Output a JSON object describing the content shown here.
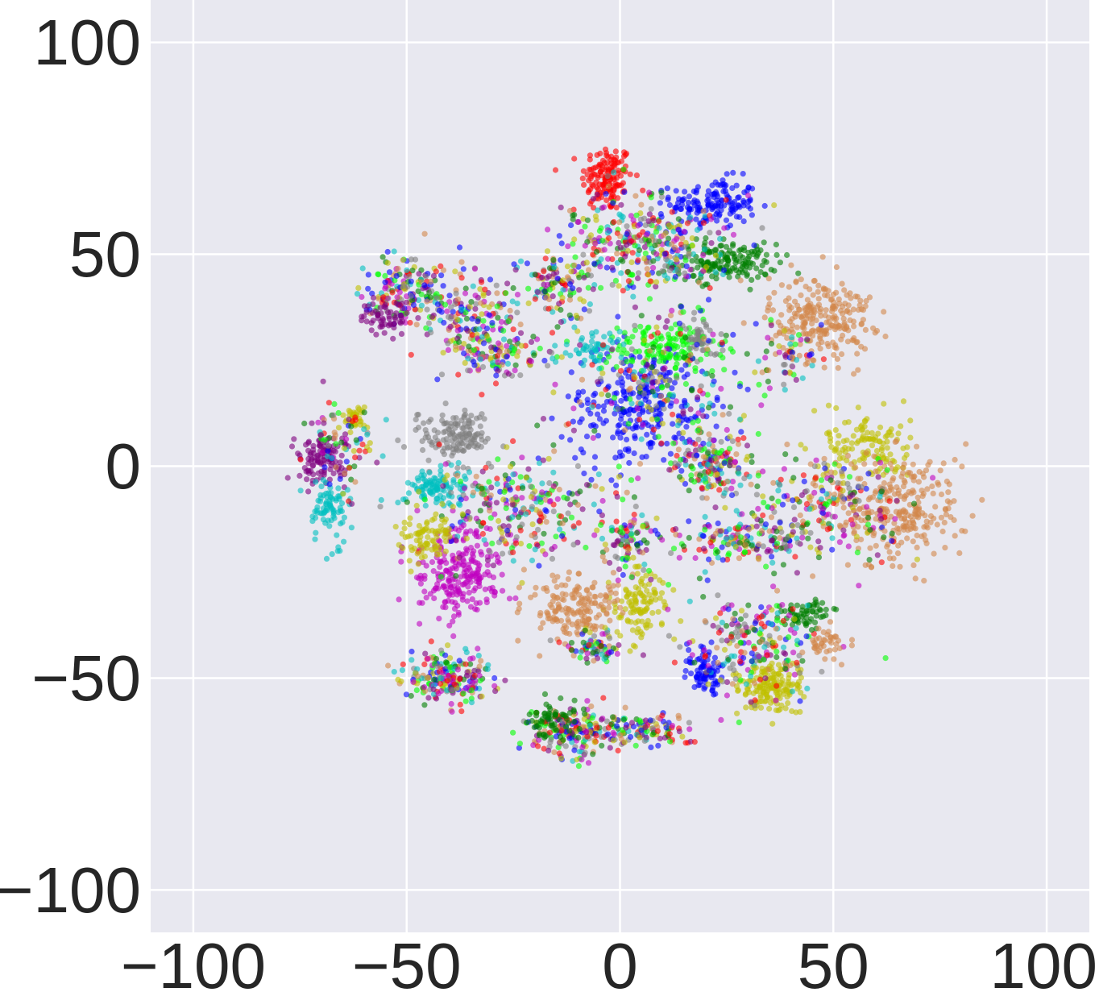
{
  "chart_data": {
    "type": "scatter",
    "title": "",
    "xlabel": "",
    "ylabel": "",
    "xlim": [
      -110,
      110
    ],
    "ylim": [
      -110,
      110
    ],
    "grid": true,
    "background": "#e8e8f0",
    "grid_color": "#ffffff",
    "legend": "none",
    "x_ticks": [
      -100,
      -50,
      0,
      50,
      100
    ],
    "y_ticks": [
      -100,
      -50,
      0,
      50,
      100
    ],
    "x_tick_labels": [
      "−100",
      "−50",
      "0",
      "50",
      "100"
    ],
    "y_tick_labels": [
      "−100",
      "−50",
      "0",
      "50",
      "100"
    ],
    "point_alpha": 0.6,
    "clusters": [
      {
        "blobs": [
          {
            "cx": -3,
            "cy": 68,
            "sx": 3,
            "sy": 4,
            "n": 140,
            "color": "#ff0000"
          },
          {
            "cx": 22,
            "cy": 62,
            "sx": 5,
            "sy": 3,
            "n": 150,
            "color": "#0000ff"
          },
          {
            "cx": 25,
            "cy": 48,
            "sx": 6,
            "sy": 2.2,
            "n": 150,
            "color": "#007f00"
          },
          {
            "cx": 5,
            "cy": 52,
            "sx": 10,
            "sy": 6,
            "n": 380,
            "color": "mix"
          },
          {
            "cx": -15,
            "cy": 42,
            "sx": 5,
            "sy": 4,
            "n": 110,
            "color": "mix"
          }
        ]
      },
      {
        "blobs": [
          {
            "cx": -50,
            "cy": 42,
            "sx": 5,
            "sy": 4,
            "n": 170,
            "color": "mix"
          },
          {
            "cx": -35,
            "cy": 35,
            "sx": 6,
            "sy": 5,
            "n": 170,
            "color": "mix"
          },
          {
            "cx": -28,
            "cy": 26,
            "sx": 5,
            "sy": 3,
            "n": 110,
            "color": "mix"
          },
          {
            "cx": -55,
            "cy": 35,
            "sx": 3,
            "sy": 2,
            "n": 60,
            "color": "#7f007f"
          }
        ]
      },
      {
        "blobs": [
          {
            "cx": 47,
            "cy": 35,
            "sx": 6,
            "sy": 5,
            "n": 240,
            "color": "#d2874b"
          },
          {
            "cx": 40,
            "cy": 25,
            "sx": 4,
            "sy": 3,
            "n": 60,
            "color": "mix"
          }
        ]
      },
      {
        "blobs": [
          {
            "cx": 5,
            "cy": 14,
            "sx": 9,
            "sy": 7,
            "n": 260,
            "color": "#0000ff"
          },
          {
            "cx": 10,
            "cy": 28,
            "sx": 7,
            "sy": 3,
            "n": 140,
            "color": "#00ff00"
          },
          {
            "cx": 19,
            "cy": 30,
            "sx": 2,
            "sy": 2,
            "n": 40,
            "color": "#808080"
          },
          {
            "cx": -6,
            "cy": 28,
            "sx": 3,
            "sy": 2,
            "n": 50,
            "color": "#00bfbf"
          },
          {
            "cx": 22,
            "cy": 0,
            "sx": 5,
            "sy": 4,
            "n": 170,
            "color": "mix"
          },
          {
            "cx": 10,
            "cy": 18,
            "sx": 9,
            "sy": 8,
            "n": 220,
            "color": "mix"
          }
        ]
      },
      {
        "blobs": [
          {
            "cx": -70,
            "cy": 2,
            "sx": 3,
            "sy": 3,
            "n": 110,
            "color": "#7f007f"
          },
          {
            "cx": -68,
            "cy": -10,
            "sx": 2,
            "sy": 4,
            "n": 80,
            "color": "#00bfbf"
          },
          {
            "cx": -62,
            "cy": 11,
            "sx": 1.5,
            "sy": 2,
            "n": 35,
            "color": "#bfbf00"
          },
          {
            "cx": -66,
            "cy": 5,
            "sx": 4,
            "sy": 5,
            "n": 80,
            "color": "mix"
          }
        ]
      },
      {
        "blobs": [
          {
            "cx": -38,
            "cy": 7,
            "sx": 4,
            "sy": 3,
            "n": 140,
            "color": "#808080"
          },
          {
            "cx": -43,
            "cy": -5,
            "sx": 4,
            "sy": 2,
            "n": 100,
            "color": "#00bfbf"
          },
          {
            "cx": -38,
            "cy": -25,
            "sx": 5,
            "sy": 5,
            "n": 230,
            "color": "#bf00bf"
          },
          {
            "cx": -25,
            "cy": -10,
            "sx": 10,
            "sy": 6,
            "n": 300,
            "color": "mix"
          },
          {
            "cx": -45,
            "cy": -17,
            "sx": 3,
            "sy": 3,
            "n": 80,
            "color": "#bfbf00"
          }
        ]
      },
      {
        "blobs": [
          {
            "cx": 5,
            "cy": -33,
            "sx": 3,
            "sy": 4,
            "n": 110,
            "color": "#bfbf00"
          },
          {
            "cx": -10,
            "cy": -33,
            "sx": 5,
            "sy": 4,
            "n": 170,
            "color": "#d2874b"
          },
          {
            "cx": 2,
            "cy": -18,
            "sx": 3,
            "sy": 5,
            "n": 100,
            "color": "mix"
          },
          {
            "cx": -6,
            "cy": -42,
            "sx": 4,
            "sy": 2,
            "n": 70,
            "color": "mix"
          }
        ]
      },
      {
        "blobs": [
          {
            "cx": 58,
            "cy": 5,
            "sx": 5,
            "sy": 4,
            "n": 120,
            "color": "#bfbf00"
          },
          {
            "cx": 65,
            "cy": -10,
            "sx": 8,
            "sy": 7,
            "n": 280,
            "color": "#d2874b"
          },
          {
            "cx": 48,
            "cy": -10,
            "sx": 9,
            "sy": 6,
            "n": 230,
            "color": "mix"
          },
          {
            "cx": 28,
            "cy": -18,
            "sx": 8,
            "sy": 2.5,
            "n": 160,
            "color": "mix"
          }
        ]
      },
      {
        "blobs": [
          {
            "cx": 20,
            "cy": -49,
            "sx": 2,
            "sy": 3,
            "n": 80,
            "color": "#0000ff"
          },
          {
            "cx": 35,
            "cy": -52,
            "sx": 4,
            "sy": 3,
            "n": 160,
            "color": "#bfbf00"
          },
          {
            "cx": 43,
            "cy": -35,
            "sx": 3,
            "sy": 1.5,
            "n": 60,
            "color": "#007f00"
          },
          {
            "cx": 32,
            "cy": -42,
            "sx": 8,
            "sy": 6,
            "n": 230,
            "color": "mix"
          },
          {
            "cx": 48,
            "cy": -42,
            "sx": 2,
            "sy": 2,
            "n": 40,
            "color": "#d2874b"
          }
        ]
      },
      {
        "blobs": [
          {
            "cx": -40,
            "cy": -50,
            "sx": 5,
            "sy": 3,
            "n": 210,
            "color": "mix"
          }
        ]
      },
      {
        "blobs": [
          {
            "cx": -12,
            "cy": -63,
            "sx": 5,
            "sy": 3,
            "n": 180,
            "color": "mix"
          },
          {
            "cx": 5,
            "cy": -62,
            "sx": 6,
            "sy": 1.8,
            "n": 120,
            "color": "mix"
          },
          {
            "cx": -15,
            "cy": -60,
            "sx": 3,
            "sy": 2,
            "n": 60,
            "color": "#007f00"
          }
        ]
      }
    ]
  },
  "palette": [
    "#ff0000",
    "#00ff00",
    "#0000ff",
    "#007f00",
    "#7f007f",
    "#bf00bf",
    "#00bfbf",
    "#bfbf00",
    "#808080",
    "#d2874b"
  ]
}
